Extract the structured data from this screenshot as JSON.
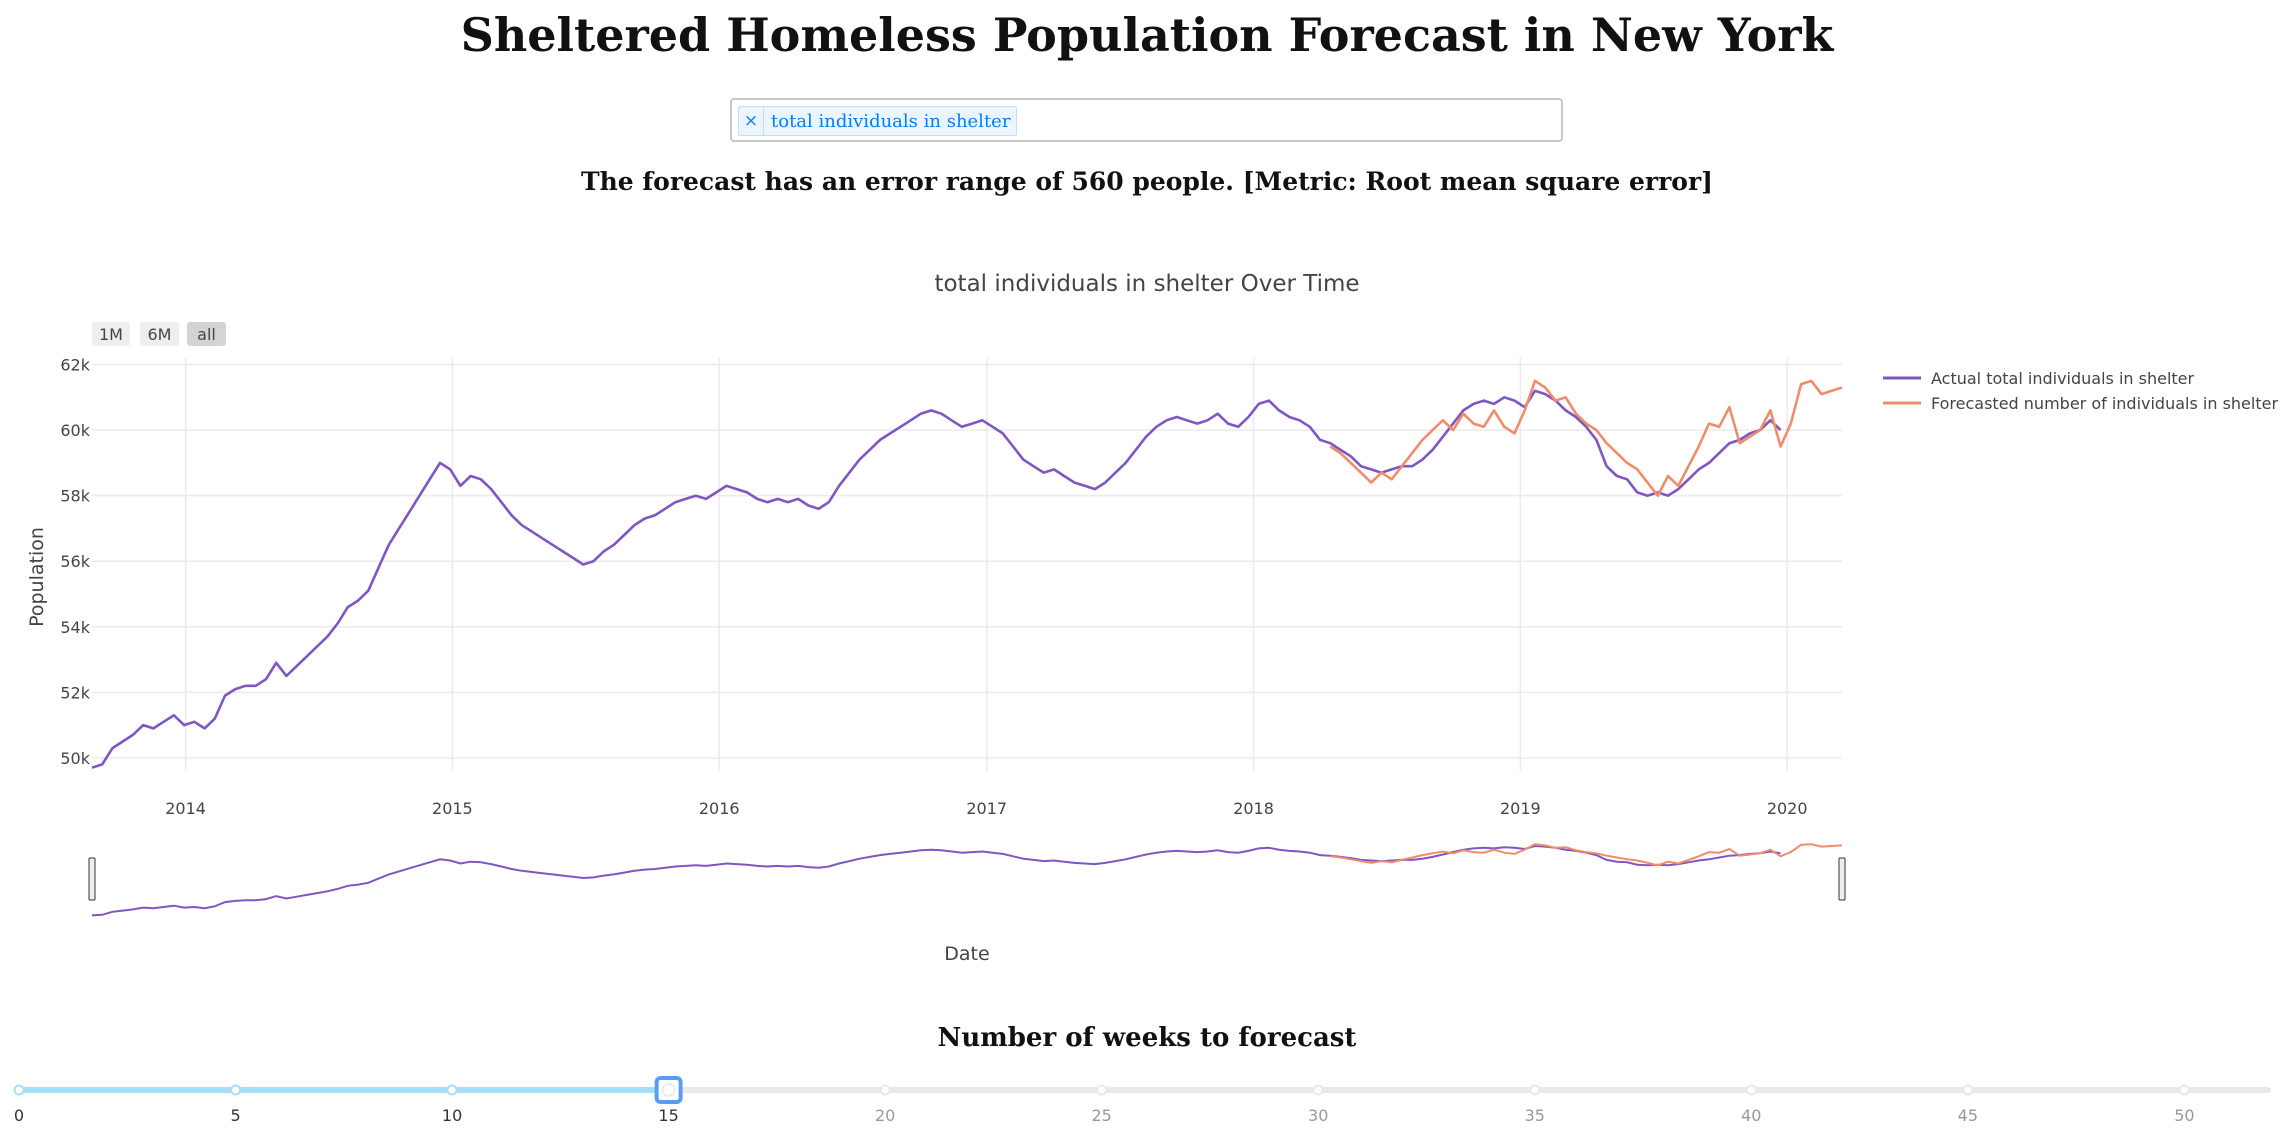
{
  "page": {
    "title": "Sheltered Homeless Population Forecast in New York",
    "error_text": "The forecast has an error range of 560 people. [Metric: Root mean square error]"
  },
  "dropdown": {
    "selected": "total individuals in shelter",
    "remove_icon": "×"
  },
  "slider": {
    "title": "Number of weeks to forecast",
    "min": 0,
    "max": 52,
    "value": 15,
    "marks": [
      0,
      5,
      10,
      15,
      20,
      25,
      30,
      35,
      40,
      45,
      50
    ],
    "track_color": "#a9dcf5",
    "handle_color": "#5b9cf2"
  },
  "chart_data": {
    "type": "line",
    "title": "total individuals in shelter Over Time",
    "xlabel": "Date",
    "ylabel": "Population",
    "xlim": [
      "2013-08-26",
      "2020-03-16"
    ],
    "ylim": [
      49600,
      62200
    ],
    "x_tick_labels": [
      "2014",
      "2015",
      "2016",
      "2017",
      "2018",
      "2019",
      "2020"
    ],
    "y_ticks": [
      50000,
      52000,
      54000,
      56000,
      58000,
      60000,
      62000
    ],
    "y_tick_labels": [
      "50k",
      "52k",
      "54k",
      "56k",
      "58k",
      "60k",
      "62k"
    ],
    "grid": true,
    "legend_position": "top-right",
    "range_buttons": [
      "1M",
      "6M",
      "all"
    ],
    "active_range_button": "all",
    "range_slider": true,
    "series": [
      {
        "name": "Actual total individuals in shelter",
        "color": "#7e57c2",
        "points": [
          [
            "2013-08-26",
            49700
          ],
          [
            "2013-09-09",
            49800
          ],
          [
            "2013-09-23",
            50300
          ],
          [
            "2013-10-07",
            50500
          ],
          [
            "2013-10-21",
            50700
          ],
          [
            "2013-11-04",
            51000
          ],
          [
            "2013-11-18",
            50900
          ],
          [
            "2013-12-02",
            51100
          ],
          [
            "2013-12-16",
            51300
          ],
          [
            "2013-12-30",
            51000
          ],
          [
            "2014-01-13",
            51100
          ],
          [
            "2014-01-27",
            50900
          ],
          [
            "2014-02-10",
            51200
          ],
          [
            "2014-02-24",
            51900
          ],
          [
            "2014-03-10",
            52100
          ],
          [
            "2014-03-24",
            52200
          ],
          [
            "2014-04-07",
            52200
          ],
          [
            "2014-04-21",
            52400
          ],
          [
            "2014-05-05",
            52900
          ],
          [
            "2014-05-19",
            52500
          ],
          [
            "2014-06-02",
            52800
          ],
          [
            "2014-06-16",
            53100
          ],
          [
            "2014-06-30",
            53400
          ],
          [
            "2014-07-14",
            53700
          ],
          [
            "2014-07-28",
            54100
          ],
          [
            "2014-08-11",
            54600
          ],
          [
            "2014-08-25",
            54800
          ],
          [
            "2014-09-08",
            55100
          ],
          [
            "2014-09-22",
            55800
          ],
          [
            "2014-10-06",
            56500
          ],
          [
            "2014-10-20",
            57000
          ],
          [
            "2014-11-03",
            57500
          ],
          [
            "2014-11-17",
            58000
          ],
          [
            "2014-12-01",
            58500
          ],
          [
            "2014-12-15",
            59000
          ],
          [
            "2014-12-29",
            58800
          ],
          [
            "2015-01-12",
            58300
          ],
          [
            "2015-01-26",
            58600
          ],
          [
            "2015-02-09",
            58500
          ],
          [
            "2015-02-23",
            58200
          ],
          [
            "2015-03-09",
            57800
          ],
          [
            "2015-03-23",
            57400
          ],
          [
            "2015-04-06",
            57100
          ],
          [
            "2015-04-20",
            56900
          ],
          [
            "2015-05-04",
            56700
          ],
          [
            "2015-05-18",
            56500
          ],
          [
            "2015-06-01",
            56300
          ],
          [
            "2015-06-15",
            56100
          ],
          [
            "2015-06-29",
            55900
          ],
          [
            "2015-07-13",
            56000
          ],
          [
            "2015-07-27",
            56300
          ],
          [
            "2015-08-10",
            56500
          ],
          [
            "2015-08-24",
            56800
          ],
          [
            "2015-09-07",
            57100
          ],
          [
            "2015-09-21",
            57300
          ],
          [
            "2015-10-05",
            57400
          ],
          [
            "2015-10-19",
            57600
          ],
          [
            "2015-11-02",
            57800
          ],
          [
            "2015-11-16",
            57900
          ],
          [
            "2015-11-30",
            58000
          ],
          [
            "2015-12-14",
            57900
          ],
          [
            "2015-12-28",
            58100
          ],
          [
            "2016-01-11",
            58300
          ],
          [
            "2016-01-25",
            58200
          ],
          [
            "2016-02-08",
            58100
          ],
          [
            "2016-02-22",
            57900
          ],
          [
            "2016-03-07",
            57800
          ],
          [
            "2016-03-21",
            57900
          ],
          [
            "2016-04-04",
            57800
          ],
          [
            "2016-04-18",
            57900
          ],
          [
            "2016-05-02",
            57700
          ],
          [
            "2016-05-16",
            57600
          ],
          [
            "2016-05-30",
            57800
          ],
          [
            "2016-06-13",
            58300
          ],
          [
            "2016-06-27",
            58700
          ],
          [
            "2016-07-11",
            59100
          ],
          [
            "2016-07-25",
            59400
          ],
          [
            "2016-08-08",
            59700
          ],
          [
            "2016-08-22",
            59900
          ],
          [
            "2016-09-05",
            60100
          ],
          [
            "2016-09-19",
            60300
          ],
          [
            "2016-10-03",
            60500
          ],
          [
            "2016-10-17",
            60600
          ],
          [
            "2016-10-31",
            60500
          ],
          [
            "2016-11-14",
            60300
          ],
          [
            "2016-11-28",
            60100
          ],
          [
            "2016-12-12",
            60200
          ],
          [
            "2016-12-26",
            60300
          ],
          [
            "2017-01-09",
            60100
          ],
          [
            "2017-01-23",
            59900
          ],
          [
            "2017-02-06",
            59500
          ],
          [
            "2017-02-20",
            59100
          ],
          [
            "2017-03-06",
            58900
          ],
          [
            "2017-03-20",
            58700
          ],
          [
            "2017-04-03",
            58800
          ],
          [
            "2017-04-17",
            58600
          ],
          [
            "2017-05-01",
            58400
          ],
          [
            "2017-05-15",
            58300
          ],
          [
            "2017-05-29",
            58200
          ],
          [
            "2017-06-12",
            58400
          ],
          [
            "2017-06-26",
            58700
          ],
          [
            "2017-07-10",
            59000
          ],
          [
            "2017-07-24",
            59400
          ],
          [
            "2017-08-07",
            59800
          ],
          [
            "2017-08-21",
            60100
          ],
          [
            "2017-09-04",
            60300
          ],
          [
            "2017-09-18",
            60400
          ],
          [
            "2017-10-02",
            60300
          ],
          [
            "2017-10-16",
            60200
          ],
          [
            "2017-10-30",
            60300
          ],
          [
            "2017-11-13",
            60500
          ],
          [
            "2017-11-27",
            60200
          ],
          [
            "2017-12-11",
            60100
          ],
          [
            "2017-12-25",
            60400
          ],
          [
            "2018-01-08",
            60800
          ],
          [
            "2018-01-22",
            60900
          ],
          [
            "2018-02-05",
            60600
          ],
          [
            "2018-02-19",
            60400
          ],
          [
            "2018-03-05",
            60300
          ],
          [
            "2018-03-19",
            60100
          ],
          [
            "2018-04-02",
            59700
          ],
          [
            "2018-04-16",
            59600
          ],
          [
            "2018-04-30",
            59400
          ],
          [
            "2018-05-14",
            59200
          ],
          [
            "2018-05-28",
            58900
          ],
          [
            "2018-06-11",
            58800
          ],
          [
            "2018-06-25",
            58700
          ],
          [
            "2018-07-09",
            58800
          ],
          [
            "2018-07-23",
            58900
          ],
          [
            "2018-08-06",
            58900
          ],
          [
            "2018-08-20",
            59100
          ],
          [
            "2018-09-03",
            59400
          ],
          [
            "2018-09-17",
            59800
          ],
          [
            "2018-10-01",
            60200
          ],
          [
            "2018-10-15",
            60600
          ],
          [
            "2018-10-29",
            60800
          ],
          [
            "2018-11-12",
            60900
          ],
          [
            "2018-11-26",
            60800
          ],
          [
            "2018-12-10",
            61000
          ],
          [
            "2018-12-24",
            60900
          ],
          [
            "2019-01-07",
            60700
          ],
          [
            "2019-01-21",
            61200
          ],
          [
            "2019-02-04",
            61100
          ],
          [
            "2019-02-18",
            60900
          ],
          [
            "2019-03-04",
            60600
          ],
          [
            "2019-03-18",
            60400
          ],
          [
            "2019-04-01",
            60100
          ],
          [
            "2019-04-15",
            59700
          ],
          [
            "2019-04-29",
            58900
          ],
          [
            "2019-05-13",
            58600
          ],
          [
            "2019-05-27",
            58500
          ],
          [
            "2019-06-10",
            58100
          ],
          [
            "2019-06-24",
            58000
          ],
          [
            "2019-07-08",
            58100
          ],
          [
            "2019-07-22",
            58000
          ],
          [
            "2019-08-05",
            58200
          ],
          [
            "2019-08-19",
            58500
          ],
          [
            "2019-09-02",
            58800
          ],
          [
            "2019-09-16",
            59000
          ],
          [
            "2019-09-30",
            59300
          ],
          [
            "2019-10-14",
            59600
          ],
          [
            "2019-10-28",
            59700
          ],
          [
            "2019-11-11",
            59900
          ],
          [
            "2019-11-25",
            60000
          ],
          [
            "2019-12-09",
            60300
          ],
          [
            "2019-12-23",
            60000
          ]
        ]
      },
      {
        "name": "Forecasted number of individuals in shelter",
        "color": "#f08c6c",
        "points": [
          [
            "2018-04-16",
            59500
          ],
          [
            "2018-04-30",
            59300
          ],
          [
            "2018-05-14",
            59000
          ],
          [
            "2018-05-28",
            58700
          ],
          [
            "2018-06-11",
            58400
          ],
          [
            "2018-06-25",
            58700
          ],
          [
            "2018-07-09",
            58500
          ],
          [
            "2018-07-23",
            58900
          ],
          [
            "2018-08-06",
            59300
          ],
          [
            "2018-08-20",
            59700
          ],
          [
            "2018-09-03",
            60000
          ],
          [
            "2018-09-17",
            60300
          ],
          [
            "2018-10-01",
            60000
          ],
          [
            "2018-10-15",
            60500
          ],
          [
            "2018-10-29",
            60200
          ],
          [
            "2018-11-12",
            60100
          ],
          [
            "2018-11-26",
            60600
          ],
          [
            "2018-12-10",
            60100
          ],
          [
            "2018-12-24",
            59900
          ],
          [
            "2019-01-07",
            60600
          ],
          [
            "2019-01-21",
            61500
          ],
          [
            "2019-02-04",
            61300
          ],
          [
            "2019-02-18",
            60900
          ],
          [
            "2019-03-04",
            61000
          ],
          [
            "2019-03-18",
            60500
          ],
          [
            "2019-04-01",
            60200
          ],
          [
            "2019-04-15",
            60000
          ],
          [
            "2019-04-29",
            59600
          ],
          [
            "2019-05-13",
            59300
          ],
          [
            "2019-05-27",
            59000
          ],
          [
            "2019-06-10",
            58800
          ],
          [
            "2019-06-24",
            58400
          ],
          [
            "2019-07-08",
            58000
          ],
          [
            "2019-07-22",
            58600
          ],
          [
            "2019-08-05",
            58300
          ],
          [
            "2019-08-19",
            58900
          ],
          [
            "2019-09-02",
            59500
          ],
          [
            "2019-09-16",
            60200
          ],
          [
            "2019-09-30",
            60100
          ],
          [
            "2019-10-14",
            60700
          ],
          [
            "2019-10-28",
            59600
          ],
          [
            "2019-11-11",
            59800
          ],
          [
            "2019-11-25",
            60000
          ],
          [
            "2019-12-09",
            60600
          ],
          [
            "2019-12-23",
            59500
          ],
          [
            "2020-01-06",
            60200
          ],
          [
            "2020-01-20",
            61400
          ],
          [
            "2020-02-03",
            61500
          ],
          [
            "2020-02-17",
            61100
          ],
          [
            "2020-03-02",
            61200
          ],
          [
            "2020-03-16",
            61300
          ]
        ]
      }
    ]
  }
}
